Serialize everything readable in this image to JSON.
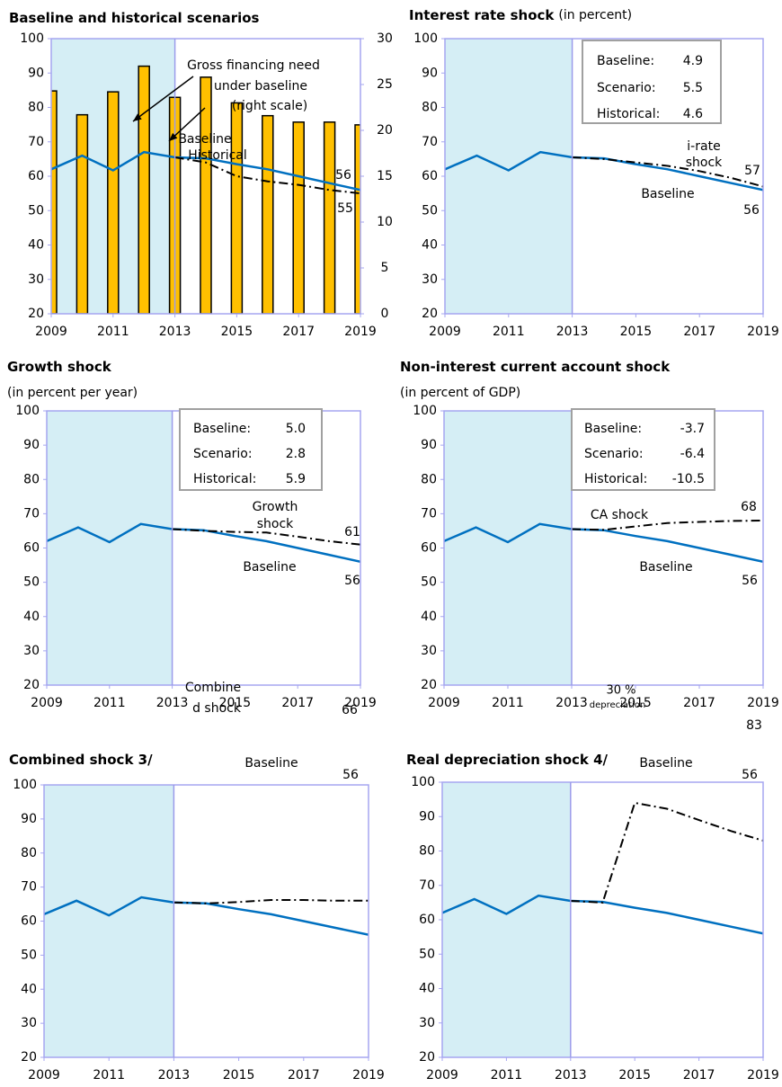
{
  "chart_data": [
    {
      "type": "combo",
      "title": "Baseline and historical scenarios",
      "x": [
        2009,
        2010,
        2011,
        2012,
        2013,
        2014,
        2015,
        2016,
        2017,
        2018,
        2019
      ],
      "xlim": [
        2009,
        2019
      ],
      "xticks": [
        2009,
        2011,
        2013,
        2015,
        2017,
        2019
      ],
      "ylim": [
        20,
        100
      ],
      "yticks": [
        20,
        30,
        40,
        50,
        60,
        70,
        80,
        90,
        100
      ],
      "y2lim": [
        0,
        30
      ],
      "y2ticks": [
        0,
        5,
        10,
        15,
        20,
        25,
        30
      ],
      "shaded": [
        2009,
        2013
      ],
      "series": [
        {
          "axis": "y2",
          "color": "#ffc000",
          "values": [
            24.3,
            21.7,
            24.2,
            27.0,
            23.6,
            25.8,
            23.0,
            21.6,
            20.9,
            20.9,
            20.6
          ]
        },
        {
          "color": "#0070c0",
          "values": [
            62,
            66,
            61.7,
            67,
            65.5,
            65.2,
            63.5,
            62,
            60,
            58,
            56
          ]
        },
        {
          "color": "#000000",
          "dash": true,
          "values": [
            null,
            null,
            null,
            null,
            65.5,
            64,
            60,
            58.5,
            57.5,
            56,
            55
          ]
        }
      ],
      "annotations": [
        "Gross financing need",
        "under baseline",
        "(right scale)",
        "Baseline",
        "Historical"
      ]
    },
    {
      "type": "line",
      "title": "Interest rate shock",
      "subtitle": "(in percent)",
      "x": [
        2009,
        2010,
        2011,
        2012,
        2013,
        2014,
        2015,
        2016,
        2017,
        2018,
        2019
      ],
      "xlim": [
        2009,
        2019
      ],
      "xticks": [
        2009,
        2011,
        2013,
        2015,
        2017,
        2019
      ],
      "ylim": [
        20,
        100
      ],
      "yticks": [
        20,
        30,
        40,
        50,
        60,
        70,
        80,
        90,
        100
      ],
      "shaded": [
        2009,
        2013
      ],
      "series": [
        {
          "color": "#0070c0",
          "values": [
            62,
            66,
            61.7,
            67,
            65.5,
            65.2,
            63.5,
            62,
            60,
            58,
            56
          ]
        },
        {
          "color": "#000000",
          "dash": true,
          "values": [
            null,
            null,
            null,
            null,
            65.5,
            65,
            64,
            63,
            61.5,
            59.5,
            57
          ]
        }
      ],
      "box": {
        "labels": [
          "Baseline:",
          "Scenario:",
          "Historical:"
        ],
        "values": [
          4.9,
          5.5,
          4.6
        ]
      },
      "annotations": [
        "i-rate",
        "shock",
        "Baseline"
      ]
    },
    {
      "type": "line",
      "title": "Growth shock",
      "subtitle": "(in percent per year)",
      "x": [
        2009,
        2010,
        2011,
        2012,
        2013,
        2014,
        2015,
        2016,
        2017,
        2018,
        2019
      ],
      "xlim": [
        2009,
        2019
      ],
      "xticks": [
        2009,
        2011,
        2013,
        2015,
        2017,
        2019
      ],
      "ylim": [
        20,
        100
      ],
      "yticks": [
        20,
        30,
        40,
        50,
        60,
        70,
        80,
        90,
        100
      ],
      "shaded": [
        2009,
        2013
      ],
      "series": [
        {
          "color": "#0070c0",
          "values": [
            62,
            66,
            61.7,
            67,
            65.5,
            65.2,
            63.5,
            62,
            60,
            58,
            56
          ]
        },
        {
          "color": "#000000",
          "dash": true,
          "values": [
            null,
            null,
            null,
            null,
            65.5,
            65,
            64.7,
            64.5,
            63.3,
            62,
            61
          ]
        }
      ],
      "box": {
        "labels": [
          "Baseline:",
          "Scenario:",
          "Historical:"
        ],
        "values": [
          5.0,
          2.8,
          5.9
        ],
        "value_labels": [
          "5.0",
          "2.8",
          "5.9"
        ]
      },
      "annotations": [
        "Growth",
        "shock",
        "Baseline"
      ]
    },
    {
      "type": "line",
      "title": "Non-interest current account shock",
      "subtitle": "(in percent of GDP)",
      "x": [
        2009,
        2010,
        2011,
        2012,
        2013,
        2014,
        2015,
        2016,
        2017,
        2018,
        2019
      ],
      "xlim": [
        2009,
        2019
      ],
      "xticks": [
        2009,
        2011,
        2013,
        2015,
        2017,
        2019
      ],
      "ylim": [
        20,
        100
      ],
      "yticks": [
        20,
        30,
        40,
        50,
        60,
        70,
        80,
        90,
        100
      ],
      "shaded": [
        2009,
        2013
      ],
      "series": [
        {
          "color": "#0070c0",
          "values": [
            62,
            66,
            61.7,
            67,
            65.5,
            65.2,
            63.5,
            62,
            60,
            58,
            56
          ]
        },
        {
          "color": "#000000",
          "dash": true,
          "values": [
            null,
            null,
            null,
            null,
            65.5,
            65.3,
            66.3,
            67.3,
            67.6,
            67.9,
            68
          ]
        }
      ],
      "box": {
        "labels": [
          "Baseline:",
          "Scenario:",
          "Historical:"
        ],
        "values": [
          -3.7,
          -6.4,
          -10.5
        ]
      },
      "annotations": [
        "CA shock",
        "Baseline"
      ]
    },
    {
      "type": "line",
      "title": "Combined shock  3/",
      "x": [
        2009,
        2010,
        2011,
        2012,
        2013,
        2014,
        2015,
        2016,
        2017,
        2018,
        2019
      ],
      "xlim": [
        2009,
        2019
      ],
      "xticks": [
        2009,
        2011,
        2013,
        2015,
        2017,
        2019
      ],
      "ylim": [
        20,
        100
      ],
      "yticks": [
        20,
        30,
        40,
        50,
        60,
        70,
        80,
        90,
        100
      ],
      "shaded": [
        2009,
        2013
      ],
      "series": [
        {
          "color": "#0070c0",
          "values": [
            62,
            66,
            61.7,
            67,
            65.5,
            65.2,
            63.5,
            62,
            60,
            58,
            56
          ]
        },
        {
          "color": "#000000",
          "dash": true,
          "values": [
            null,
            null,
            null,
            null,
            65.5,
            65.2,
            65.6,
            66.2,
            66.2,
            66,
            66
          ]
        }
      ],
      "annotations": [
        "Combine",
        "d shock",
        "Baseline"
      ]
    },
    {
      "type": "line",
      "title": "Real depreciation shock  4/",
      "x": [
        2009,
        2010,
        2011,
        2012,
        2013,
        2014,
        2015,
        2016,
        2017,
        2018,
        2019
      ],
      "xlim": [
        2009,
        2019
      ],
      "xticks": [
        2009,
        2011,
        2013,
        2015,
        2017,
        2019
      ],
      "ylim": [
        20,
        100
      ],
      "yticks": [
        20,
        30,
        40,
        50,
        60,
        70,
        80,
        90,
        100
      ],
      "shaded": [
        2009,
        2013
      ],
      "series": [
        {
          "color": "#0070c0",
          "values": [
            62,
            66,
            61.7,
            67,
            65.5,
            65.2,
            63.5,
            62,
            60,
            58,
            56
          ]
        },
        {
          "color": "#000000",
          "dash": true,
          "values": [
            null,
            null,
            null,
            null,
            65.5,
            65,
            94,
            92.3,
            89,
            85.8,
            83
          ]
        }
      ],
      "annotations": [
        "30 %",
        "depreciation",
        "Baseline"
      ]
    }
  ]
}
